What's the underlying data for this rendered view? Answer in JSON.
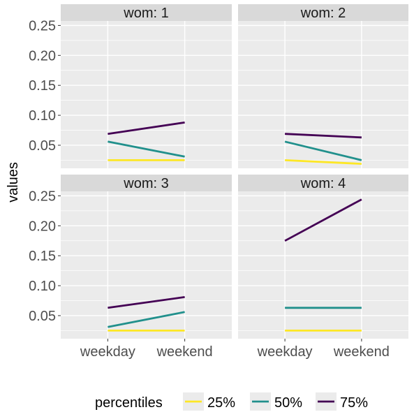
{
  "chart_data": {
    "type": "line",
    "facet_label_prefix": "wom: ",
    "x": [
      "weekday",
      "weekend"
    ],
    "ylabel": "values",
    "ylim": [
      0.0115,
      0.2575
    ],
    "yticks": [
      0.05,
      0.1,
      0.15,
      0.2,
      0.25
    ],
    "ytick_labels": [
      "0.05",
      "0.10",
      "0.15",
      "0.20",
      "0.25"
    ],
    "legend": {
      "title": "percentiles",
      "placement": "bottom"
    },
    "series_styles": [
      {
        "name": "25%",
        "color": "#FDE725"
      },
      {
        "name": "50%",
        "color": "#21908C"
      },
      {
        "name": "75%",
        "color": "#440154"
      }
    ],
    "facets": [
      {
        "wom": "1",
        "series": [
          {
            "name": "25%",
            "values": [
              0.025,
              0.025
            ]
          },
          {
            "name": "50%",
            "values": [
              0.056,
              0.031
            ]
          },
          {
            "name": "75%",
            "values": [
              0.069,
              0.088
            ]
          }
        ]
      },
      {
        "wom": "2",
        "series": [
          {
            "name": "25%",
            "values": [
              0.025,
              0.019
            ]
          },
          {
            "name": "50%",
            "values": [
              0.056,
              0.025
            ]
          },
          {
            "name": "75%",
            "values": [
              0.069,
              0.063
            ]
          }
        ]
      },
      {
        "wom": "3",
        "series": [
          {
            "name": "25%",
            "values": [
              0.025,
              0.025
            ]
          },
          {
            "name": "50%",
            "values": [
              0.031,
              0.056
            ]
          },
          {
            "name": "75%",
            "values": [
              0.063,
              0.081
            ]
          }
        ]
      },
      {
        "wom": "4",
        "series": [
          {
            "name": "25%",
            "values": [
              0.025,
              0.025
            ]
          },
          {
            "name": "50%",
            "values": [
              0.063,
              0.063
            ]
          },
          {
            "name": "75%",
            "values": [
              0.175,
              0.244
            ]
          }
        ]
      }
    ]
  }
}
